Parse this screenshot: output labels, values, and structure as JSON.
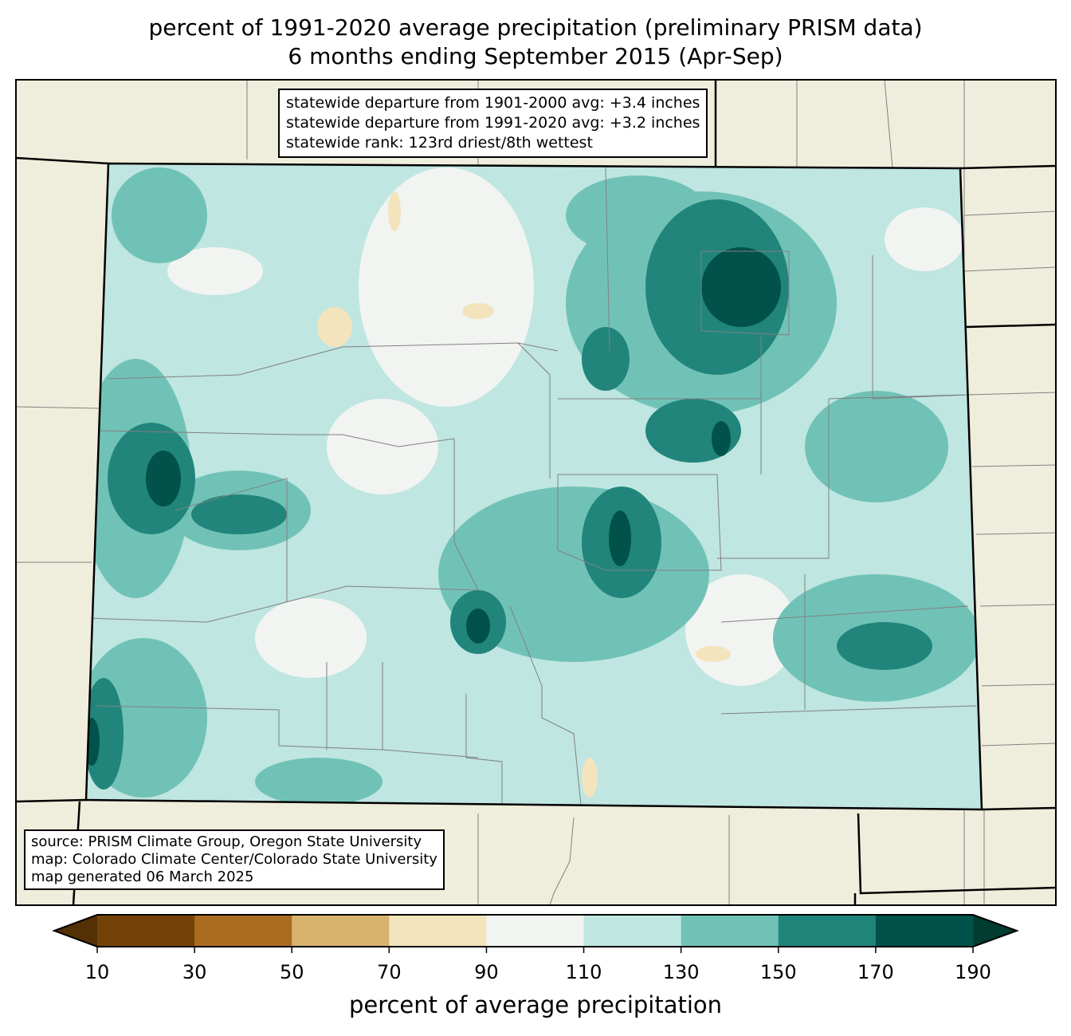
{
  "title_line1": "percent of 1991-2020 average precipitation (preliminary PRISM data)",
  "title_line2": "6 months ending September 2015 (Apr-Sep)",
  "stats_box": {
    "line1": "statewide departure from 1901-2000 avg: +3.4 inches",
    "line2": "statewide departure from 1991-2020 avg: +3.2 inches",
    "line3": "statewide rank: 123rd driest/8th wettest"
  },
  "source_box": {
    "line1": "source: PRISM Climate Group, Oregon State University",
    "line2": "map: Colorado Climate Center/Colorado State University",
    "line3": "map generated 06 March 2025"
  },
  "colorbar": {
    "label": "percent of average precipitation",
    "ticks": [
      "10",
      "30",
      "50",
      "70",
      "90",
      "110",
      "130",
      "150",
      "170",
      "190"
    ],
    "colors": [
      "#744208",
      "#ab6c22",
      "#d8b36e",
      "#f3e4bd",
      "#f2f4f2",
      "#bfe6e1",
      "#71c2b6",
      "#21857c",
      "#01524a"
    ],
    "under_color": "#543005",
    "over_color": "#003c30"
  },
  "colors": {
    "land": "#efeedc"
  }
}
